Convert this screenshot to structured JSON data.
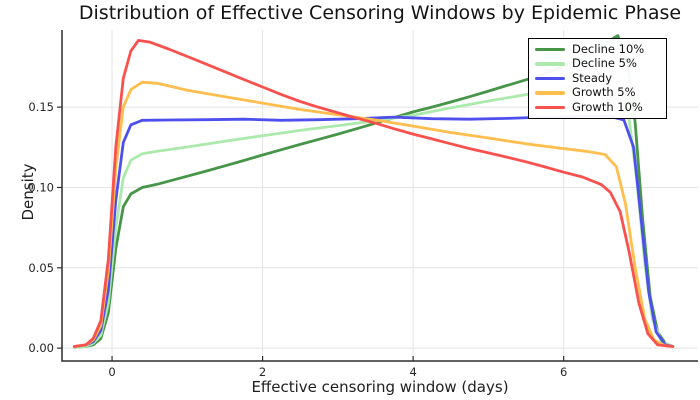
{
  "title": "Distribution of Effective Censoring Windows by Epidemic Phase",
  "chart_data": {
    "type": "line",
    "title": "Distribution of Effective Censoring Windows by Epidemic Phase",
    "xlabel": "Effective censoring window (days)",
    "ylabel": "Density",
    "xlim": [
      -0.665,
      7.785
    ],
    "ylim": [
      -0.008,
      0.198
    ],
    "xticks": [
      0,
      2,
      4,
      6
    ],
    "x_tick_labels": [
      "0",
      "2",
      "4",
      "6"
    ],
    "yticks": [
      0.0,
      0.05,
      0.1,
      0.15
    ],
    "y_tick_labels": [
      "0.00",
      "0.05",
      "0.10",
      "0.15"
    ],
    "grid": true,
    "legend_position": "top-right",
    "colors": {
      "grid": "#e4e4e4",
      "spine": "#2d2d2d",
      "tick_text": "#262626"
    },
    "series": [
      {
        "name": "Decline 10%",
        "color": "#479549",
        "points": [
          [
            -0.5,
            0.0005
          ],
          [
            -0.35,
            0.001
          ],
          [
            -0.25,
            0.002
          ],
          [
            -0.15,
            0.006
          ],
          [
            -0.05,
            0.022
          ],
          [
            0.05,
            0.062
          ],
          [
            0.15,
            0.088
          ],
          [
            0.25,
            0.096
          ],
          [
            0.4,
            0.1
          ],
          [
            0.6,
            0.102
          ],
          [
            0.8,
            0.1045
          ],
          [
            1,
            0.107
          ],
          [
            1.25,
            0.1102
          ],
          [
            1.5,
            0.1135
          ],
          [
            1.75,
            0.1168
          ],
          [
            2,
            0.1202
          ],
          [
            2.25,
            0.1235
          ],
          [
            2.5,
            0.1268
          ],
          [
            2.75,
            0.13
          ],
          [
            3,
            0.1332
          ],
          [
            3.25,
            0.1366
          ],
          [
            3.5,
            0.14
          ],
          [
            3.75,
            0.1435
          ],
          [
            4,
            0.147
          ],
          [
            4.25,
            0.15
          ],
          [
            4.5,
            0.1532
          ],
          [
            4.75,
            0.1565
          ],
          [
            5,
            0.16
          ],
          [
            5.25,
            0.1635
          ],
          [
            5.5,
            0.167
          ],
          [
            5.75,
            0.171
          ],
          [
            6,
            0.1752
          ],
          [
            6.25,
            0.1808
          ],
          [
            6.45,
            0.186
          ],
          [
            6.6,
            0.191
          ],
          [
            6.72,
            0.1945
          ],
          [
            6.85,
            0.178
          ],
          [
            6.95,
            0.14
          ],
          [
            7.05,
            0.08
          ],
          [
            7.15,
            0.032
          ],
          [
            7.25,
            0.01
          ],
          [
            7.35,
            0.003
          ],
          [
            7.45,
            0.001
          ]
        ]
      },
      {
        "name": "Decline 5%",
        "color": "#ace9ac",
        "points": [
          [
            -0.5,
            0.0005
          ],
          [
            -0.35,
            0.001
          ],
          [
            -0.25,
            0.003
          ],
          [
            -0.15,
            0.008
          ],
          [
            -0.05,
            0.028
          ],
          [
            0.05,
            0.075
          ],
          [
            0.15,
            0.106
          ],
          [
            0.25,
            0.117
          ],
          [
            0.4,
            0.121
          ],
          [
            0.6,
            0.1225
          ],
          [
            1,
            0.1252
          ],
          [
            1.5,
            0.1288
          ],
          [
            2,
            0.1322
          ],
          [
            2.5,
            0.1355
          ],
          [
            3,
            0.1385
          ],
          [
            3.5,
            0.1415
          ],
          [
            4,
            0.145
          ],
          [
            4.5,
            0.1495
          ],
          [
            5,
            0.1538
          ],
          [
            5.5,
            0.1578
          ],
          [
            6,
            0.1615
          ],
          [
            6.3,
            0.1638
          ],
          [
            6.55,
            0.1658
          ],
          [
            6.7,
            0.165
          ],
          [
            6.85,
            0.15
          ],
          [
            6.97,
            0.105
          ],
          [
            7.08,
            0.052
          ],
          [
            7.18,
            0.018
          ],
          [
            7.3,
            0.004
          ],
          [
            7.45,
            0.001
          ]
        ]
      },
      {
        "name": "Steady",
        "color": "#4f4fee",
        "points": [
          [
            -0.5,
            0.001
          ],
          [
            -0.35,
            0.002
          ],
          [
            -0.25,
            0.004
          ],
          [
            -0.15,
            0.011
          ],
          [
            -0.05,
            0.036
          ],
          [
            0.05,
            0.092
          ],
          [
            0.15,
            0.128
          ],
          [
            0.25,
            0.139
          ],
          [
            0.4,
            0.1418
          ],
          [
            0.75,
            0.142
          ],
          [
            1.25,
            0.1422
          ],
          [
            1.75,
            0.1425
          ],
          [
            2.25,
            0.1418
          ],
          [
            2.75,
            0.1422
          ],
          [
            3.25,
            0.1428
          ],
          [
            3.75,
            0.1438
          ],
          [
            4.25,
            0.1428
          ],
          [
            4.75,
            0.1425
          ],
          [
            5.25,
            0.143
          ],
          [
            5.75,
            0.1438
          ],
          [
            6.25,
            0.1442
          ],
          [
            6.6,
            0.1445
          ],
          [
            6.8,
            0.142
          ],
          [
            6.93,
            0.125
          ],
          [
            7.03,
            0.08
          ],
          [
            7.13,
            0.035
          ],
          [
            7.23,
            0.01
          ],
          [
            7.35,
            0.002
          ],
          [
            7.45,
            0.001
          ]
        ]
      },
      {
        "name": "Growth 5%",
        "color": "#ffbe4d",
        "points": [
          [
            -0.5,
            0.001
          ],
          [
            -0.35,
            0.002
          ],
          [
            -0.25,
            0.005
          ],
          [
            -0.15,
            0.014
          ],
          [
            -0.05,
            0.048
          ],
          [
            0.05,
            0.112
          ],
          [
            0.15,
            0.15
          ],
          [
            0.25,
            0.161
          ],
          [
            0.4,
            0.1655
          ],
          [
            0.6,
            0.1648
          ],
          [
            1,
            0.1605
          ],
          [
            1.5,
            0.1565
          ],
          [
            2,
            0.1525
          ],
          [
            2.5,
            0.1485
          ],
          [
            3,
            0.1452
          ],
          [
            3.5,
            0.142
          ],
          [
            4,
            0.1382
          ],
          [
            4.5,
            0.1342
          ],
          [
            5,
            0.1308
          ],
          [
            5.5,
            0.1272
          ],
          [
            6,
            0.1242
          ],
          [
            6.3,
            0.1225
          ],
          [
            6.55,
            0.1205
          ],
          [
            6.7,
            0.113
          ],
          [
            6.82,
            0.09
          ],
          [
            6.95,
            0.05
          ],
          [
            7.08,
            0.018
          ],
          [
            7.2,
            0.005
          ],
          [
            7.35,
            0.0015
          ],
          [
            7.45,
            0.001
          ]
        ]
      },
      {
        "name": "Growth 10%",
        "color": "#f9514e",
        "points": [
          [
            -0.5,
            0.001
          ],
          [
            -0.35,
            0.002
          ],
          [
            -0.25,
            0.006
          ],
          [
            -0.15,
            0.017
          ],
          [
            -0.05,
            0.055
          ],
          [
            0.05,
            0.125
          ],
          [
            0.15,
            0.168
          ],
          [
            0.25,
            0.185
          ],
          [
            0.35,
            0.1915
          ],
          [
            0.5,
            0.1905
          ],
          [
            0.75,
            0.1862
          ],
          [
            1,
            0.1815
          ],
          [
            1.25,
            0.1768
          ],
          [
            1.5,
            0.172
          ],
          [
            1.75,
            0.1672
          ],
          [
            2,
            0.1625
          ],
          [
            2.25,
            0.1578
          ],
          [
            2.5,
            0.1535
          ],
          [
            2.75,
            0.1498
          ],
          [
            3,
            0.1465
          ],
          [
            3.25,
            0.1432
          ],
          [
            3.5,
            0.14
          ],
          [
            3.75,
            0.1365
          ],
          [
            4,
            0.1332
          ],
          [
            4.25,
            0.1302
          ],
          [
            4.5,
            0.1272
          ],
          [
            4.75,
            0.1242
          ],
          [
            5,
            0.1215
          ],
          [
            5.25,
            0.1188
          ],
          [
            5.5,
            0.116
          ],
          [
            5.75,
            0.1128
          ],
          [
            6,
            0.1095
          ],
          [
            6.25,
            0.1065
          ],
          [
            6.5,
            0.1018
          ],
          [
            6.62,
            0.097
          ],
          [
            6.75,
            0.085
          ],
          [
            6.87,
            0.06
          ],
          [
            7,
            0.028
          ],
          [
            7.12,
            0.009
          ],
          [
            7.25,
            0.002
          ],
          [
            7.45,
            0.001
          ]
        ]
      }
    ]
  }
}
